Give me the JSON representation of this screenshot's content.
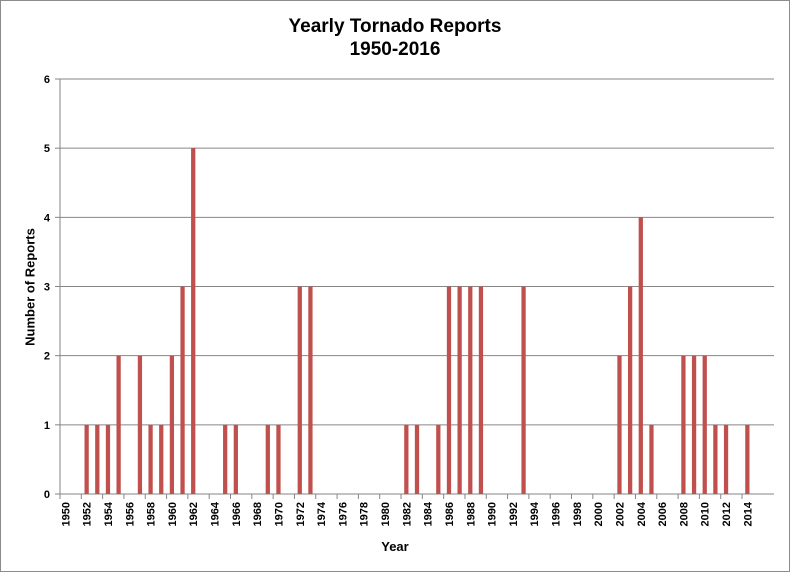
{
  "chart_data": {
    "type": "bar",
    "title": "Yearly Tornado Reports",
    "subtitle": "1950-2016",
    "xlabel": "Year",
    "ylabel": "Number of Reports",
    "ylim": [
      0,
      6
    ],
    "yticks": [
      0,
      1,
      2,
      3,
      4,
      5,
      6
    ],
    "grid": true,
    "legend": "none",
    "bar_color": "#c0504d",
    "x_tick_labels": [
      "1950",
      "1952",
      "1954",
      "1956",
      "1958",
      "1960",
      "1962",
      "1964",
      "1966",
      "1968",
      "1970",
      "1972",
      "1974",
      "1976",
      "1978",
      "1980",
      "1982",
      "1984",
      "1986",
      "1988",
      "1990",
      "1992",
      "1994",
      "1996",
      "1998",
      "2000",
      "2002",
      "2004",
      "2006",
      "2008",
      "2010",
      "2012",
      "2014"
    ],
    "categories": [
      1950,
      1951,
      1952,
      1953,
      1954,
      1955,
      1956,
      1957,
      1958,
      1959,
      1960,
      1961,
      1962,
      1963,
      1964,
      1965,
      1966,
      1967,
      1968,
      1969,
      1970,
      1971,
      1972,
      1973,
      1974,
      1975,
      1976,
      1977,
      1978,
      1979,
      1980,
      1981,
      1982,
      1983,
      1984,
      1985,
      1986,
      1987,
      1988,
      1989,
      1990,
      1991,
      1992,
      1993,
      1994,
      1995,
      1996,
      1997,
      1998,
      1999,
      2000,
      2001,
      2002,
      2003,
      2004,
      2005,
      2006,
      2007,
      2008,
      2009,
      2010,
      2011,
      2012,
      2013,
      2014,
      2015,
      2016
    ],
    "values": [
      0,
      0,
      1,
      1,
      1,
      2,
      0,
      2,
      1,
      1,
      2,
      3,
      5,
      0,
      0,
      1,
      1,
      0,
      0,
      1,
      1,
      0,
      3,
      3,
      0,
      0,
      0,
      0,
      0,
      0,
      0,
      0,
      1,
      1,
      0,
      1,
      3,
      3,
      3,
      3,
      0,
      0,
      0,
      3,
      0,
      0,
      0,
      0,
      0,
      0,
      0,
      0,
      2,
      3,
      4,
      1,
      0,
      0,
      2,
      2,
      2,
      1,
      1,
      0,
      1,
      0,
      0
    ]
  }
}
